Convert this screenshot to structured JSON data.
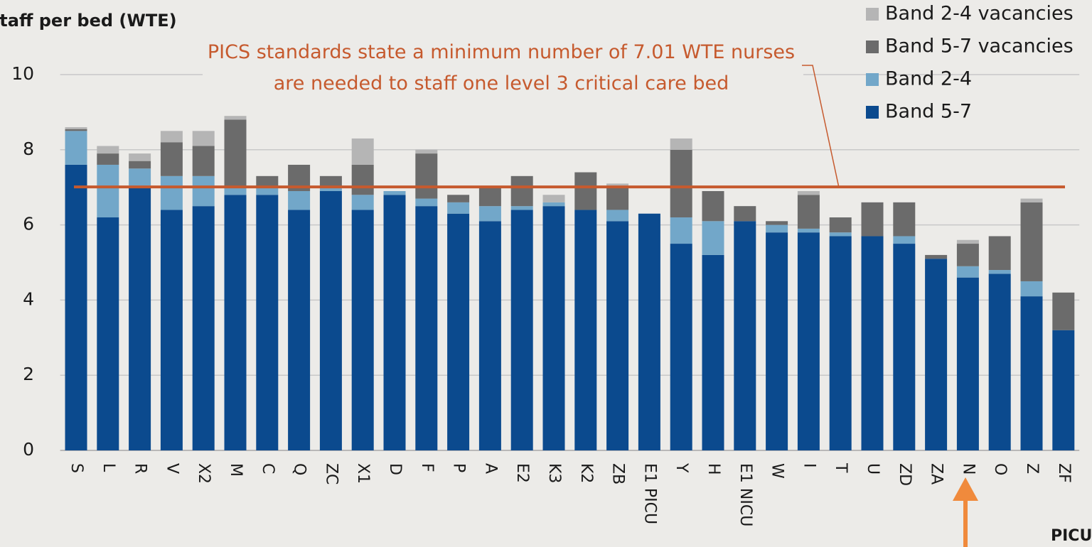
{
  "chart_data": {
    "type": "stacked-bar",
    "y_label": "Staff per bed (WTE)",
    "x_label": "PICU",
    "annotation": "PICS standards state a minimum number of 7.01 WTE nurses are needed to staff one level 3 critical care bed",
    "reference_line": {
      "value": 7.01,
      "color": "#c65a2e"
    },
    "categories": [
      "S",
      "L",
      "R",
      "V",
      "X2",
      "M",
      "C",
      "Q",
      "ZC",
      "X1",
      "D",
      "F",
      "P",
      "A",
      "E2",
      "K3",
      "K2",
      "ZB",
      "E1 PICU",
      "Y",
      "H",
      "E1 NICU",
      "W",
      "I",
      "T",
      "U",
      "ZD",
      "ZA",
      "N",
      "O",
      "Z",
      "ZF"
    ],
    "series": [
      {
        "name": "Band 5-7",
        "color": "#0b4a8e",
        "values": [
          7.6,
          6.2,
          7.0,
          6.4,
          6.5,
          6.8,
          6.8,
          6.4,
          6.9,
          6.4,
          6.8,
          6.5,
          6.3,
          6.1,
          6.4,
          6.5,
          6.4,
          6.1,
          6.3,
          5.5,
          5.2,
          6.1,
          5.8,
          5.8,
          5.7,
          5.7,
          5.5,
          5.1,
          4.6,
          4.7,
          4.1,
          3.2
        ]
      },
      {
        "name": "Band 2-4",
        "color": "#72a7c9",
        "values": [
          0.9,
          1.4,
          0.5,
          0.9,
          0.8,
          0.2,
          0.2,
          0.5,
          0.1,
          0.4,
          0.1,
          0.2,
          0.3,
          0.4,
          0.1,
          0.1,
          0,
          0.3,
          0,
          0.7,
          0.9,
          0,
          0.2,
          0.1,
          0.1,
          0,
          0.2,
          0,
          0.3,
          0.1,
          0.4,
          0
        ]
      },
      {
        "name": "Band 5-7 vacancies",
        "color": "#6b6b6b",
        "values": [
          0.05,
          0.3,
          0.2,
          0.9,
          0.8,
          1.8,
          0.3,
          0.7,
          0.3,
          0.8,
          0,
          1.2,
          0.2,
          0.5,
          0.8,
          0,
          1.0,
          0.6,
          0,
          1.8,
          0.8,
          0.4,
          0.1,
          0.9,
          0.4,
          0.9,
          0.9,
          0.1,
          0.6,
          0.9,
          2.1,
          1.0
        ]
      },
      {
        "name": "Band 2-4 vacancies",
        "color": "#b5b5b5",
        "values": [
          0.05,
          0.2,
          0.2,
          0.3,
          0.4,
          0.1,
          0,
          0,
          0,
          0.7,
          0,
          0.1,
          0,
          0,
          0,
          0.2,
          0,
          0.1,
          0,
          0.3,
          0,
          0,
          0,
          0.1,
          0,
          0,
          0,
          0,
          0.1,
          0,
          0.1,
          0
        ]
      }
    ],
    "ylim": [
      0,
      10
    ],
    "yticks": [
      0,
      2,
      4,
      6,
      8,
      10
    ],
    "grid": true
  }
}
